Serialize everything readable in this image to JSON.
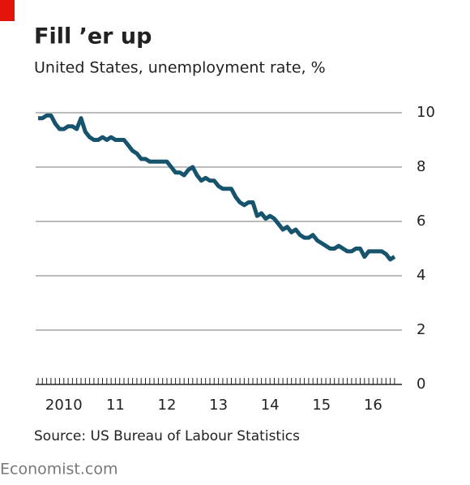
{
  "chart_data": {
    "type": "line",
    "title": "Fill ’er up",
    "subtitle": "United States, unemployment rate, %",
    "source": "Source: US Bureau of Labour Statistics",
    "brand": "Economist.com",
    "categories": [
      null,
      null,
      null,
      null,
      null,
      null,
      "2010",
      null,
      null,
      null,
      null,
      null,
      null,
      null,
      null,
      null,
      null,
      null,
      "11",
      null,
      null,
      null,
      null,
      null,
      null,
      null,
      null,
      null,
      null,
      null,
      "12",
      null,
      null,
      null,
      null,
      null,
      null,
      null,
      null,
      null,
      null,
      null,
      "13",
      null,
      null,
      null,
      null,
      null,
      null,
      null,
      null,
      null,
      null,
      null,
      "14",
      null,
      null,
      null,
      null,
      null,
      null,
      null,
      null,
      null,
      null,
      null,
      "15",
      null,
      null,
      null,
      null,
      null,
      null,
      null,
      null,
      null,
      null,
      null,
      "16",
      null,
      null,
      null,
      null,
      null
    ],
    "series": [
      {
        "name": "Unemployment rate",
        "color": "#16536d",
        "values": [
          9.8,
          9.8,
          9.9,
          9.9,
          9.6,
          9.4,
          9.4,
          9.5,
          9.5,
          9.4,
          9.8,
          9.3,
          9.1,
          9.0,
          9.0,
          9.1,
          9.0,
          9.1,
          9.0,
          9.0,
          9.0,
          8.8,
          8.6,
          8.5,
          8.3,
          8.3,
          8.2,
          8.2,
          8.2,
          8.2,
          8.2,
          8.0,
          7.8,
          7.8,
          7.7,
          7.9,
          8.0,
          7.7,
          7.5,
          7.6,
          7.5,
          7.5,
          7.3,
          7.2,
          7.2,
          7.2,
          6.9,
          6.7,
          6.6,
          6.7,
          6.7,
          6.2,
          6.3,
          6.1,
          6.2,
          6.1,
          5.9,
          5.7,
          5.8,
          5.6,
          5.7,
          5.5,
          5.4,
          5.4,
          5.5,
          5.3,
          5.2,
          5.1,
          5.0,
          5.0,
          5.1,
          5.0,
          4.9,
          4.9,
          5.0,
          5.0,
          4.7,
          4.9,
          4.9,
          4.9,
          4.9,
          4.8,
          4.6,
          4.7
        ]
      }
    ],
    "ylim": [
      0,
      10
    ],
    "yticks": [
      0,
      2,
      4,
      6,
      8,
      10
    ],
    "grid": true
  }
}
